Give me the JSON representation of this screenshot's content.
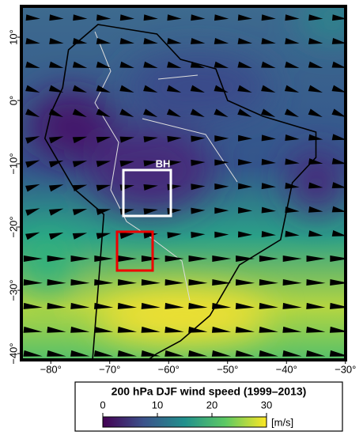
{
  "map": {
    "xticks": [
      {
        "value": -80,
        "label": "−80°"
      },
      {
        "value": -70,
        "label": "−70°"
      },
      {
        "value": -60,
        "label": "−60°"
      },
      {
        "value": -50,
        "label": "−50°"
      },
      {
        "value": -40,
        "label": "−40°"
      },
      {
        "value": -30,
        "label": "−30°"
      }
    ],
    "yticks": [
      {
        "value": 10,
        "label": "10°"
      },
      {
        "value": 0,
        "label": "0°"
      },
      {
        "value": -10,
        "label": "−10°"
      },
      {
        "value": -20,
        "label": "−20°"
      },
      {
        "value": -30,
        "label": "−30°"
      },
      {
        "value": -40,
        "label": "−40°"
      }
    ],
    "box_label": "BH",
    "colorbar": {
      "title": "200 hPa DJF wind speed (1999–2013)",
      "range": [
        0,
        30
      ],
      "ticks": [
        0,
        10,
        20,
        30
      ],
      "unit": "[m/s]"
    }
  }
}
